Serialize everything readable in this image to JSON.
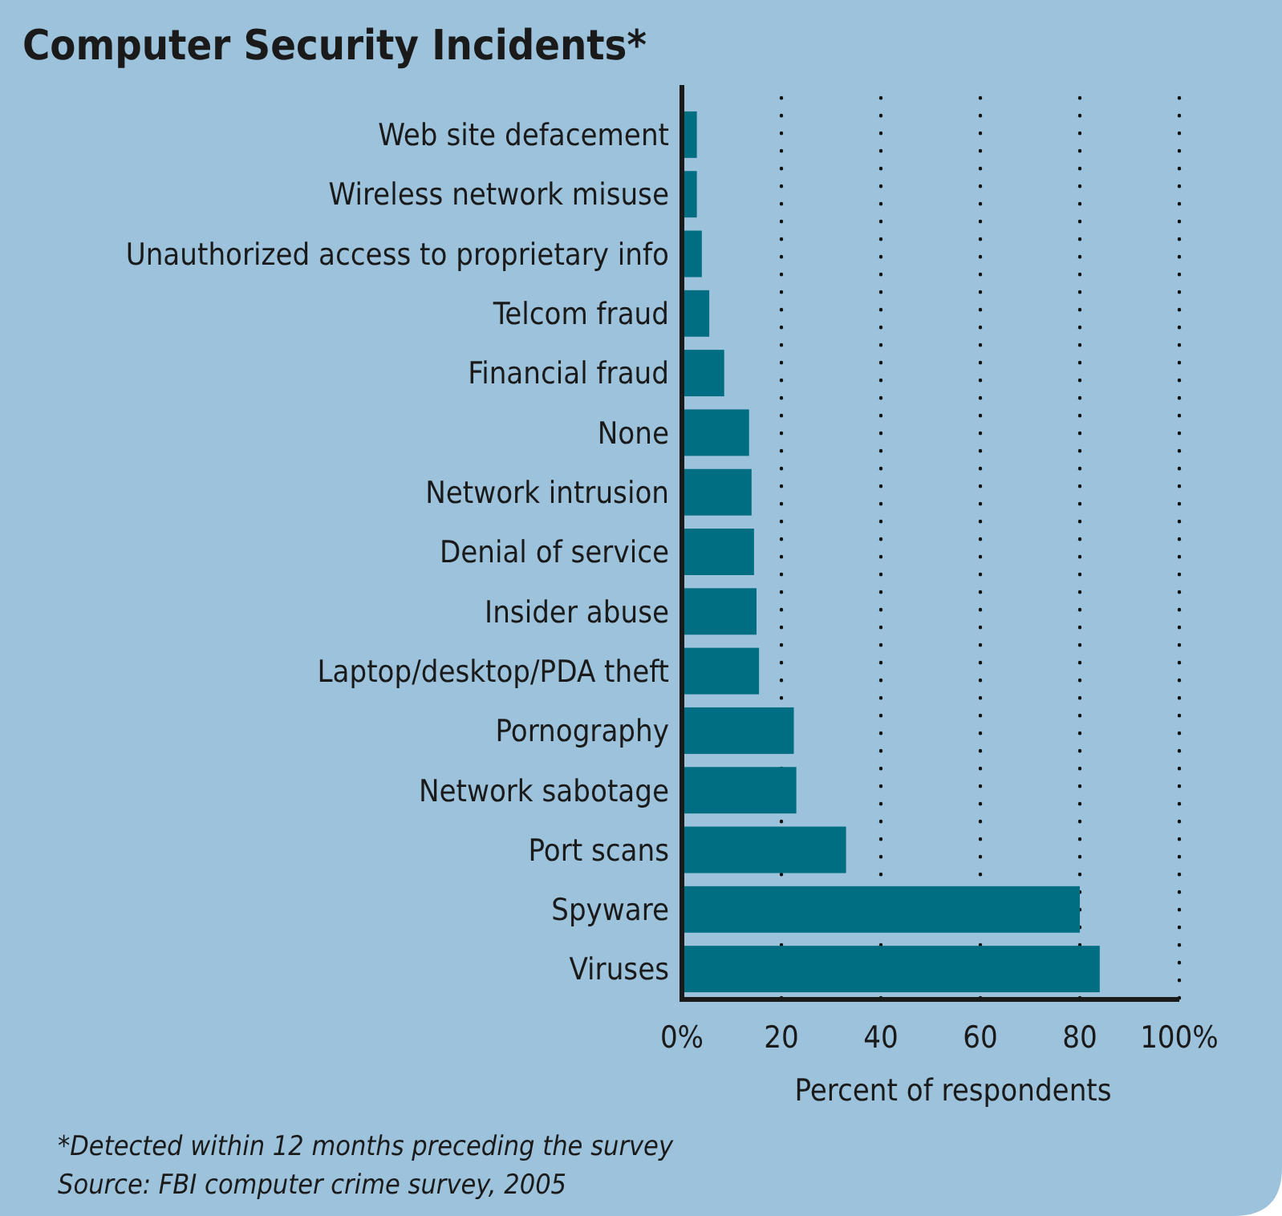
{
  "chart_data": {
    "type": "bar",
    "orientation": "horizontal",
    "title": "Computer Security Incidents*",
    "xlabel": "Percent of respondents",
    "categories": [
      "Web site defacement",
      "Wireless network misuse",
      "Unauthorized access to proprietary info",
      "Telcom fraud",
      "Financial fraud",
      "None",
      "Network intrusion",
      "Denial of service",
      "Insider abuse",
      "Laptop/desktop/PDA theft",
      "Pornography",
      "Network sabotage",
      "Port scans",
      "Spyware",
      "Viruses"
    ],
    "values": [
      3,
      3,
      4,
      5.5,
      8.5,
      13.5,
      14,
      14.5,
      15,
      15.5,
      22.5,
      23,
      33,
      80,
      84
    ],
    "color": "#006e82",
    "xlim": [
      0,
      100
    ],
    "xticks": [
      {
        "value": 0,
        "label": "0%"
      },
      20,
      40,
      60,
      80,
      {
        "value": 100,
        "label": "100%"
      }
    ],
    "grid": "x",
    "annotations": [
      "*Detected within 12 months preceding the survey",
      "Source: FBI computer crime survey, 2005"
    ]
  }
}
